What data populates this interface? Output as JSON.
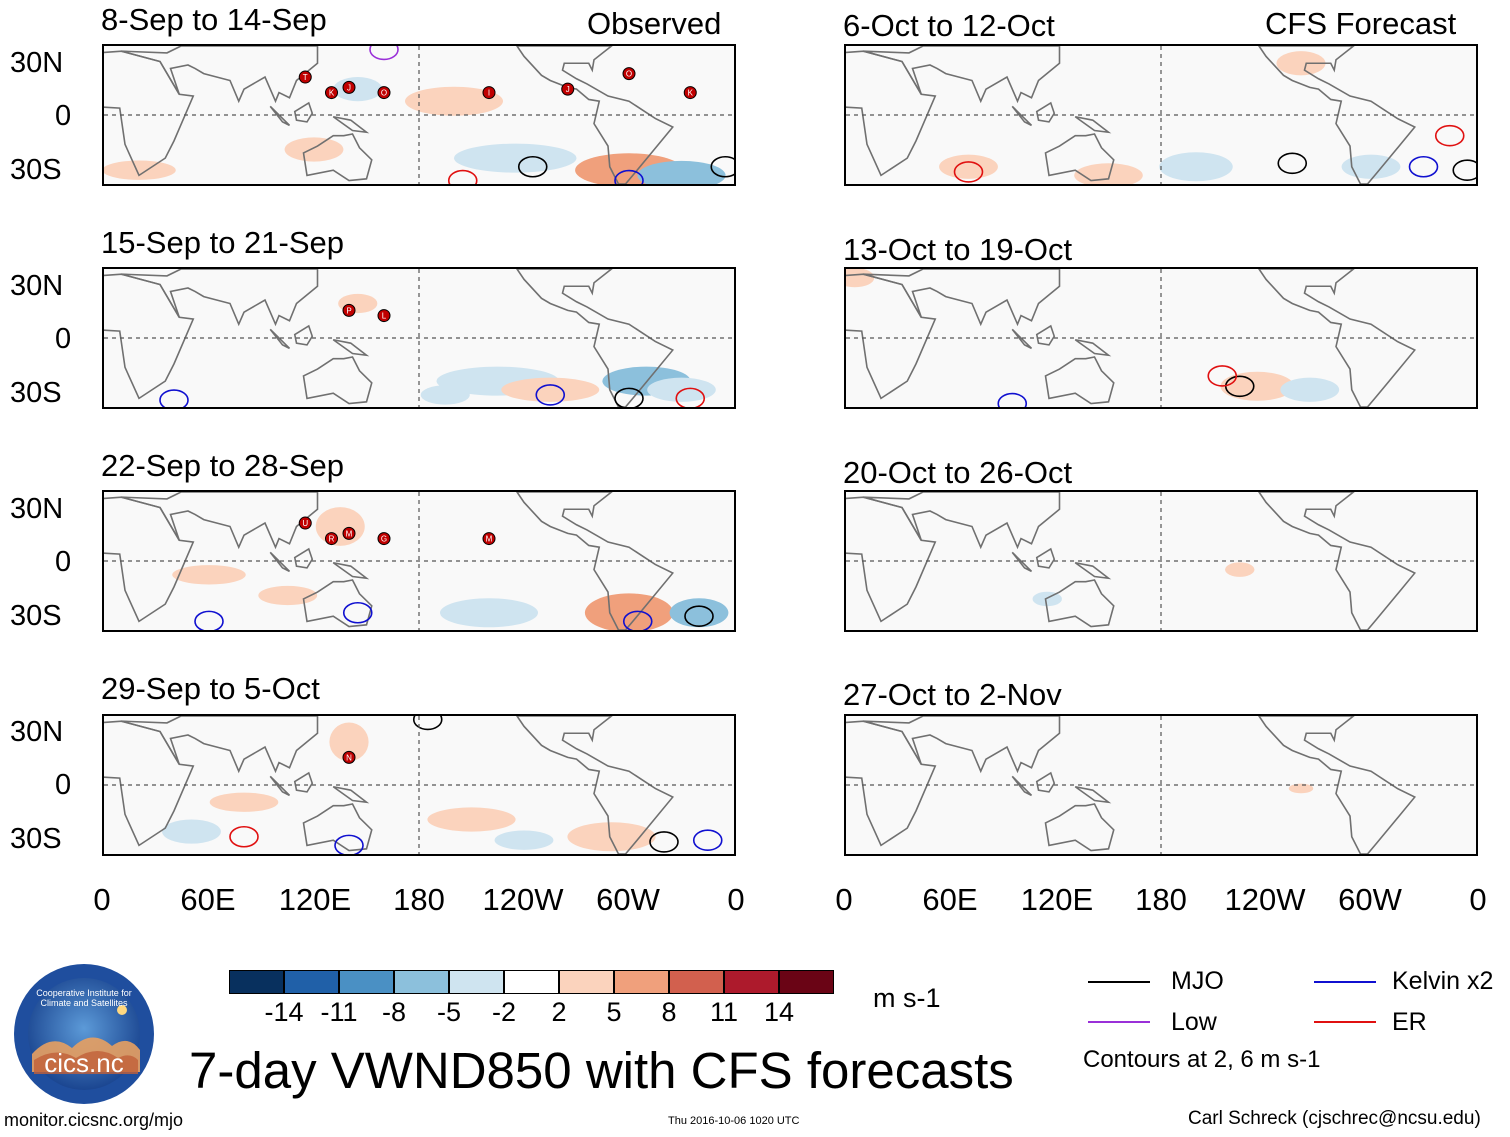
{
  "header": {
    "left_label": "Observed",
    "right_label": "CFS Forecast"
  },
  "observed_panels": [
    {
      "title": "8-Sep to 14-Sep"
    },
    {
      "title": "15-Sep to 21-Sep"
    },
    {
      "title": "22-Sep to 28-Sep"
    },
    {
      "title": "29-Sep to 5-Oct"
    }
  ],
  "forecast_panels": [
    {
      "title": "6-Oct to 12-Oct"
    },
    {
      "title": "13-Oct to 19-Oct"
    },
    {
      "title": "20-Oct to 26-Oct"
    },
    {
      "title": "27-Oct to 2-Nov"
    }
  ],
  "lat_labels": [
    "30N",
    "0",
    "30S"
  ],
  "lon_labels": [
    "0",
    "60E",
    "120E",
    "180",
    "120W",
    "60W",
    "0"
  ],
  "colorbar": {
    "labels": [
      "-14",
      "-11",
      "-8",
      "-5",
      "-2",
      "2",
      "5",
      "8",
      "11",
      "14"
    ],
    "colors": [
      "#08305e",
      "#2060a8",
      "#4a90c4",
      "#8cc0dc",
      "#cfe4f0",
      "#ffffff",
      "#fbd3bd",
      "#f0a07c",
      "#d2604e",
      "#ad1a2c",
      "#6a0415"
    ],
    "unit": "m s-1"
  },
  "legend": {
    "items": [
      {
        "label": "MJO",
        "color": "#000000"
      },
      {
        "label": "Kelvin x2",
        "color": "#1010d0"
      },
      {
        "label": "Low",
        "color": "#9a30d8"
      },
      {
        "label": "ER",
        "color": "#e01010"
      }
    ],
    "note": "Contours at 2, 6 m s-1"
  },
  "logo": {
    "text": "cics.nc",
    "ring_text": "Cooperative Institute for Climate and Satellites"
  },
  "main_title": "7-day VWND850 with CFS forecasts",
  "footer": {
    "url": "monitor.cicsnc.org/mjo",
    "timestamp": "Thu 2016-10-06 1020 UTC",
    "author": "Carl Schreck (cjschrec@ncsu.edu)"
  },
  "storms": [
    [
      "J",
      "O",
      "T",
      "K",
      "I",
      "J",
      "O",
      "K"
    ],
    [
      "P",
      "L"
    ],
    [
      "M",
      "G",
      "U",
      "R",
      "M"
    ],
    [
      "N"
    ]
  ]
}
